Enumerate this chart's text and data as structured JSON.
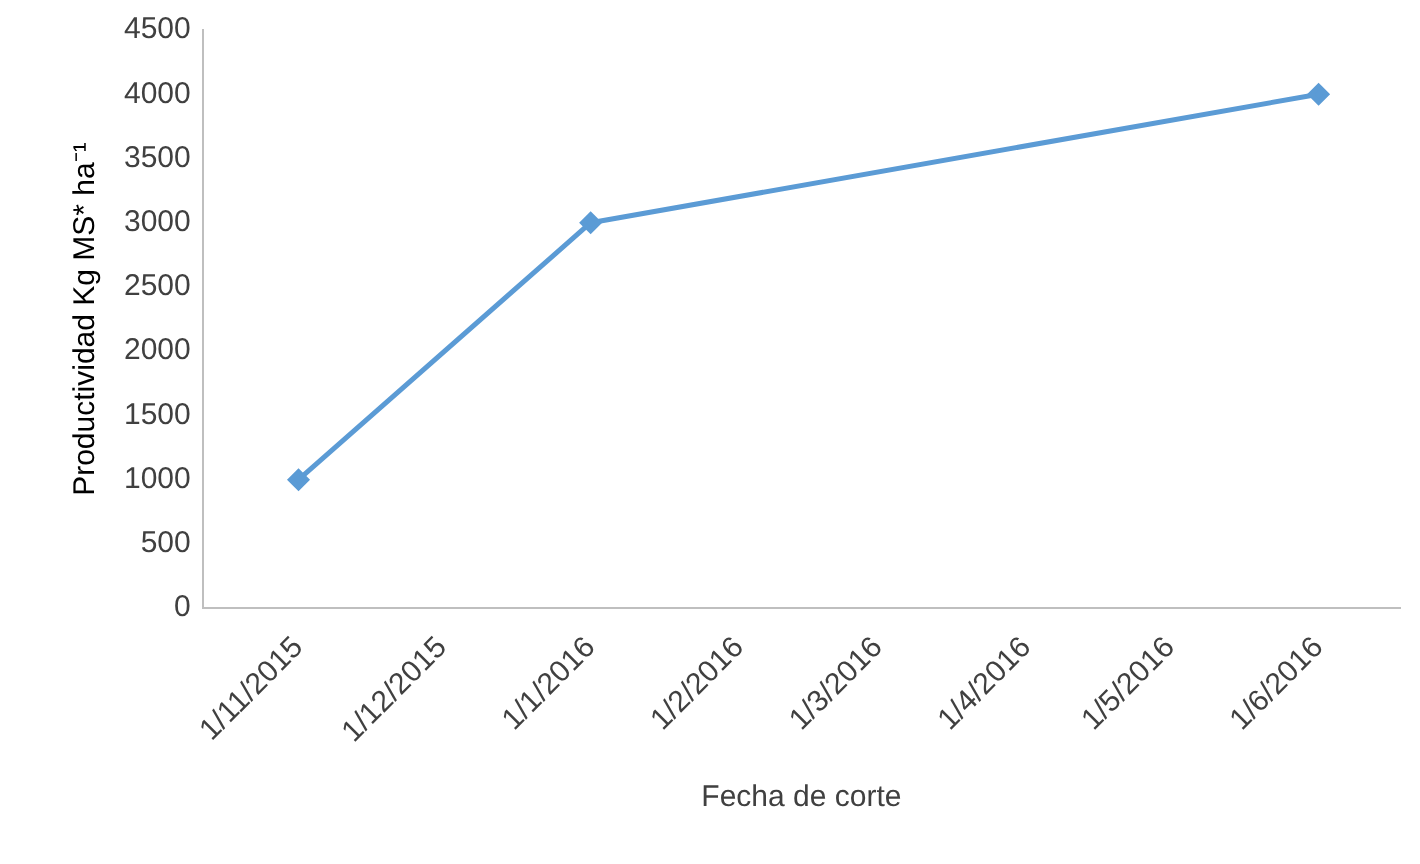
{
  "chart_data": {
    "type": "line",
    "xlabel": "Fecha de corte",
    "ylabel": "Productividad Kg MS* ha⁻¹",
    "x": [
      "2015-11-01",
      "2016-01-01",
      "2016-06-01"
    ],
    "series": [
      {
        "color": "#5b9bd5",
        "values": [
          1000,
          3000,
          4000
        ]
      }
    ],
    "xlim": [
      "2015-10-12",
      "2016-06-18"
    ],
    "xticks": [
      {
        "value": "2015-11-01",
        "label": "1/11/2015"
      },
      {
        "value": "2015-12-01",
        "label": "1/12/2015"
      },
      {
        "value": "2016-01-01",
        "label": "1/1/2016"
      },
      {
        "value": "2016-02-01",
        "label": "1/2/2016"
      },
      {
        "value": "2016-03-01",
        "label": "1/3/2016"
      },
      {
        "value": "2016-04-01",
        "label": "1/4/2016"
      },
      {
        "value": "2016-05-01",
        "label": "1/5/2016"
      },
      {
        "value": "2016-06-01",
        "label": "1/6/2016"
      }
    ],
    "ylim": [
      0,
      4500
    ],
    "yticks": [
      0,
      500,
      1000,
      1500,
      2000,
      2500,
      3000,
      3500,
      4000,
      4500
    ],
    "grid": false,
    "legend": false,
    "marker": "diamond",
    "line_style": "solid"
  }
}
